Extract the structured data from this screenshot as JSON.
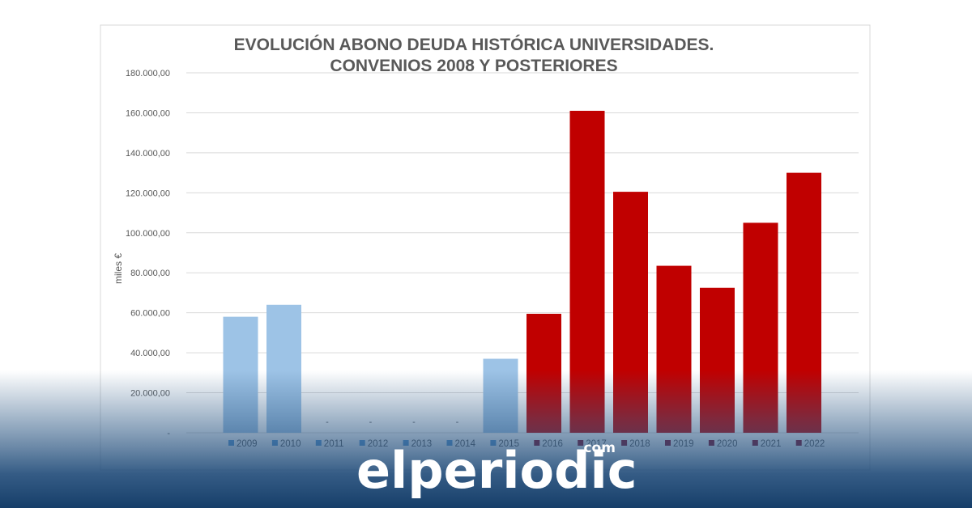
{
  "chart_data": {
    "type": "bar",
    "title": "EVOLUCIÓN ABONO DEUDA HISTÓRICA UNIVERSIDADES.",
    "subtitle": "CONVENIOS 2008 Y POSTERIORES",
    "ylabel": "miles €",
    "xlabel": "",
    "ylim": [
      0,
      180000
    ],
    "y_ticks": [
      "-",
      "20.000,00",
      "40.000,00",
      "60.000,00",
      "80.000,00",
      "100.000,00",
      "120.000,00",
      "140.000,00",
      "160.000,00",
      "180.000,00"
    ],
    "grid": true,
    "legend_position": "bottom",
    "zero_value_label": "-",
    "categories": [
      "2009",
      "2010",
      "2011",
      "2012",
      "2013",
      "2014",
      "2015",
      "2016",
      "2017",
      "2018",
      "2019",
      "2020",
      "2021",
      "2022"
    ],
    "values": [
      58000,
      64000,
      0,
      0,
      0,
      0,
      37000,
      59500,
      161000,
      120500,
      83500,
      72500,
      105000,
      130000
    ],
    "legend": [
      "2009",
      "2010",
      "2011",
      "2012",
      "2013",
      "2014",
      "2015",
      "2016",
      "2017",
      "2018",
      "2019",
      "2020",
      "2021",
      "2022"
    ],
    "colors": {
      "blue_bars": "#9dc3e6",
      "red_bars": "#c00000",
      "blue_legend": "#5b9bd5",
      "red_legend": "#8b0a23"
    }
  },
  "branding": {
    "logo_text": "elperiodic",
    "logo_suffix": ".com"
  }
}
